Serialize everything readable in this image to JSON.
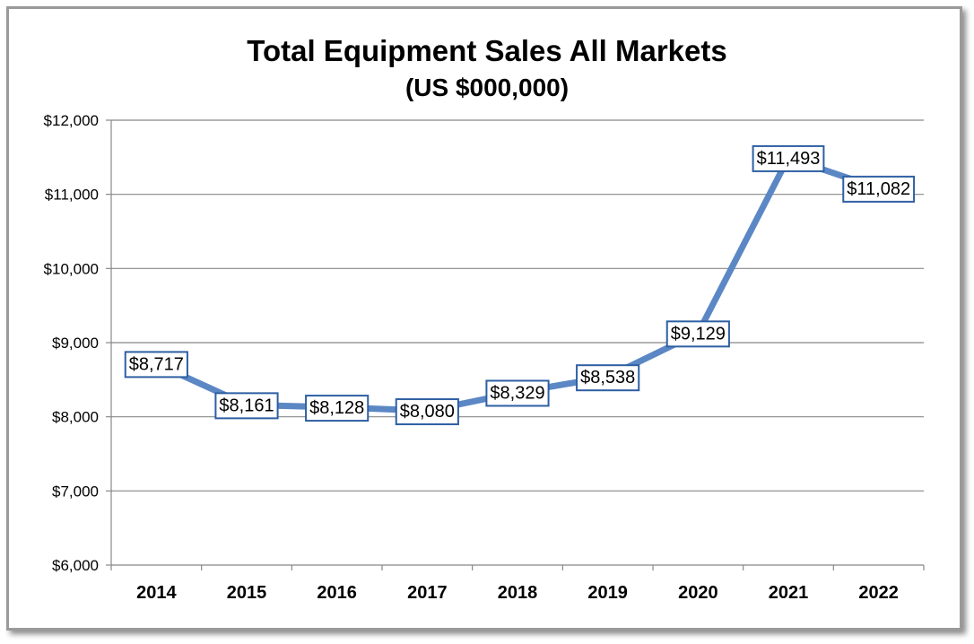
{
  "chart_data": {
    "type": "line",
    "title": "Total Equipment Sales All Markets",
    "subtitle": "(US $000,000)",
    "xlabel": "",
    "ylabel": "",
    "categories": [
      "2014",
      "2015",
      "2016",
      "2017",
      "2018",
      "2019",
      "2020",
      "2021",
      "2022"
    ],
    "series": [
      {
        "values": [
          8717,
          8161,
          8128,
          8080,
          8329,
          8538,
          9129,
          11493,
          11082
        ],
        "labels": [
          "$8,717",
          "$8,161",
          "$8,128",
          "$8,080",
          "$8,329",
          "$8,538",
          "$9,129",
          "$11,493",
          "$11,082"
        ],
        "color": "#5b87c5"
      }
    ],
    "ylim": [
      6000,
      12000
    ],
    "yticks": [
      6000,
      7000,
      8000,
      9000,
      10000,
      11000,
      12000
    ],
    "ytick_labels": [
      "$6,000",
      "$7,000",
      "$8,000",
      "$9,000",
      "$10,000",
      "$11,000",
      "$12,000"
    ],
    "grid": true,
    "legend": "none",
    "label_border_color": "#2e5fa3",
    "gridline_color": "#888888"
  }
}
